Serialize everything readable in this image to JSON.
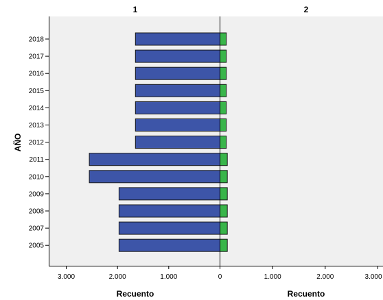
{
  "chart_data": {
    "type": "bar",
    "orientation": "horizontal",
    "layout": "population-pyramid",
    "panels": [
      "1",
      "2"
    ],
    "ylabel": "AÑO",
    "xlabels": [
      "Recuento",
      "Recuento"
    ],
    "categories": [
      "2018",
      "2017",
      "2016",
      "2015",
      "2014",
      "2013",
      "2012",
      "2011",
      "2010",
      "2009",
      "2008",
      "2007",
      "2005"
    ],
    "series": [
      {
        "name": "1",
        "color": "#3d55a8",
        "values": [
          1650,
          1650,
          1650,
          1650,
          1650,
          1650,
          1650,
          2550,
          2550,
          1970,
          1970,
          1970,
          1970
        ]
      },
      {
        "name": "2",
        "color": "#39b54a",
        "values": [
          120,
          120,
          120,
          120,
          120,
          120,
          120,
          140,
          140,
          140,
          140,
          140,
          140
        ]
      }
    ],
    "xlim": [
      0,
      3000
    ],
    "left_ticks": [
      "3.000",
      "2.000",
      "1.000",
      "0"
    ],
    "right_ticks": [
      "1.000",
      "2.000",
      "3.000"
    ],
    "tick_values": [
      3000,
      2000,
      1000,
      0,
      1000,
      2000,
      3000
    ],
    "plot_background": "#f0f0f0",
    "grid": false,
    "legend": "none"
  }
}
